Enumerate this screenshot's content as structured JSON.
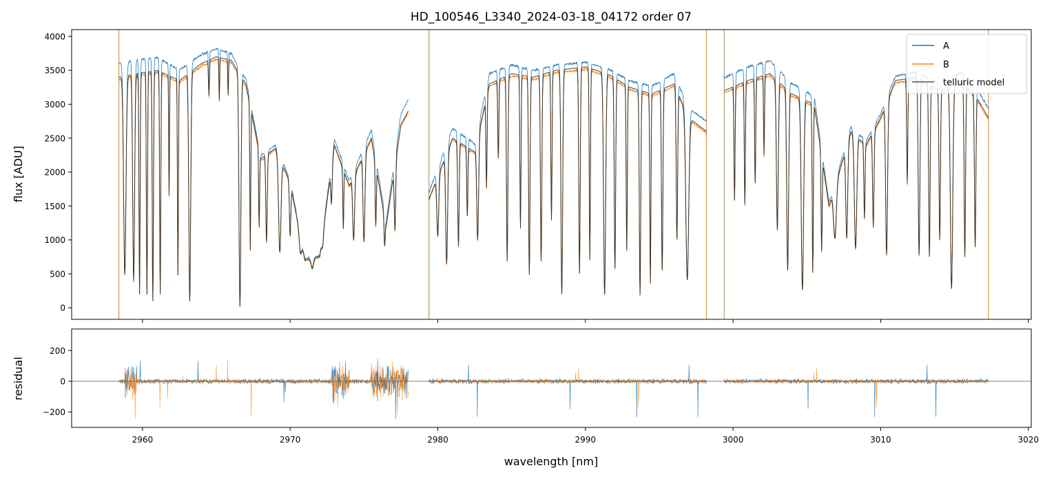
{
  "chart_data": [
    {
      "type": "line",
      "title": "HD_100546_L3340_2024-03-18_04172  order 07",
      "ylabel": "flux [ADU]",
      "xlim": [
        2955.2,
        3020.2
      ],
      "ylim": [
        -170,
        4100
      ],
      "yticks": [
        0,
        500,
        1000,
        1500,
        2000,
        2500,
        3000,
        3500,
        4000
      ],
      "xticks": [
        2960,
        2970,
        2980,
        2990,
        3000,
        3010,
        3020
      ],
      "legend_position": "top-right",
      "gap_lines_x": [
        2958.4,
        2979.4,
        2998.2,
        2999.4,
        3017.3
      ],
      "segments": [
        [
          2958.4,
          2978.0
        ],
        [
          2979.4,
          2998.2
        ],
        [
          2999.4,
          3017.3
        ]
      ],
      "continuum": [
        [
          2958.4,
          3400
        ],
        [
          2959.5,
          3450
        ],
        [
          2961.0,
          3500
        ],
        [
          2962.5,
          3350
        ],
        [
          2964.0,
          3600
        ],
        [
          2965.0,
          3700
        ],
        [
          2966.0,
          3650
        ],
        [
          2967.0,
          3300
        ],
        [
          2968.0,
          2200
        ],
        [
          2969.0,
          2350
        ],
        [
          2970.0,
          1850
        ],
        [
          2971.0,
          700
        ],
        [
          2972.0,
          750
        ],
        [
          2973.0,
          2400
        ],
        [
          2974.0,
          1800
        ],
        [
          2975.5,
          2500
        ],
        [
          2976.5,
          1200
        ],
        [
          2977.5,
          2700
        ],
        [
          2978.0,
          2900
        ],
        [
          2979.4,
          1600
        ],
        [
          2981.0,
          2500
        ],
        [
          2982.5,
          2300
        ],
        [
          2983.5,
          3300
        ],
        [
          2985.0,
          3450
        ],
        [
          2986.5,
          3400
        ],
        [
          2988.0,
          3500
        ],
        [
          2990.0,
          3550
        ],
        [
          2991.5,
          3450
        ],
        [
          2993.0,
          3250
        ],
        [
          2994.5,
          3150
        ],
        [
          2996.0,
          3300
        ],
        [
          2997.0,
          2800
        ],
        [
          2998.2,
          2600
        ],
        [
          2999.4,
          3200
        ],
        [
          3001.0,
          3350
        ],
        [
          3002.5,
          3450
        ],
        [
          3004.0,
          3150
        ],
        [
          3005.5,
          3000
        ],
        [
          3006.5,
          1500
        ],
        [
          3008.0,
          2600
        ],
        [
          3009.0,
          2400
        ],
        [
          3010.0,
          2800
        ],
        [
          3011.0,
          3350
        ],
        [
          3012.5,
          3400
        ],
        [
          3014.0,
          3200
        ],
        [
          3015.5,
          3350
        ],
        [
          3016.5,
          3100
        ],
        [
          3017.3,
          2800
        ]
      ],
      "absorption_lines": [
        [
          2958.8,
          3000,
          0.25
        ],
        [
          2959.4,
          3100,
          0.2
        ],
        [
          2959.8,
          3300,
          0.12
        ],
        [
          2960.3,
          3300,
          0.12
        ],
        [
          2960.7,
          3400,
          0.13
        ],
        [
          2961.2,
          3300,
          0.12
        ],
        [
          2961.8,
          1800,
          0.08
        ],
        [
          2962.4,
          3000,
          0.1
        ],
        [
          2963.2,
          3400,
          0.2
        ],
        [
          2964.5,
          500,
          0.1
        ],
        [
          2965.2,
          600,
          0.08
        ],
        [
          2965.8,
          500,
          0.08
        ],
        [
          2966.6,
          3500,
          0.2
        ],
        [
          2967.3,
          2500,
          0.1
        ],
        [
          2967.9,
          1700,
          0.1
        ],
        [
          2968.4,
          2000,
          0.15
        ],
        [
          2969.3,
          2200,
          0.25
        ],
        [
          2970.0,
          1500,
          0.15
        ],
        [
          2970.7,
          800,
          0.25
        ],
        [
          2971.5,
          700,
          0.25
        ],
        [
          2972.2,
          600,
          0.2
        ],
        [
          2972.8,
          900,
          0.15
        ],
        [
          2973.6,
          1500,
          0.1
        ],
        [
          2974.3,
          1700,
          0.2
        ],
        [
          2975.0,
          2000,
          0.2
        ],
        [
          2975.8,
          1500,
          0.12
        ],
        [
          2976.4,
          1100,
          0.12
        ],
        [
          2977.1,
          1600,
          0.15
        ],
        [
          2980.0,
          1600,
          0.2
        ],
        [
          2980.6,
          2500,
          0.2
        ],
        [
          2981.4,
          2200,
          0.15
        ],
        [
          2982.0,
          1500,
          0.12
        ],
        [
          2982.7,
          2100,
          0.2
        ],
        [
          2983.3,
          1500,
          0.12
        ],
        [
          2984.1,
          1200,
          0.12
        ],
        [
          2984.7,
          2800,
          0.15
        ],
        [
          2985.6,
          2300,
          0.12
        ],
        [
          2986.2,
          3000,
          0.15
        ],
        [
          2987.0,
          2800,
          0.15
        ],
        [
          2987.7,
          2200,
          0.12
        ],
        [
          2988.4,
          3300,
          0.18
        ],
        [
          2989.6,
          3000,
          0.15
        ],
        [
          2990.3,
          2800,
          0.12
        ],
        [
          2991.3,
          3300,
          0.22
        ],
        [
          2992.0,
          2900,
          0.15
        ],
        [
          2992.8,
          2600,
          0.12
        ],
        [
          2993.7,
          3300,
          0.15
        ],
        [
          2994.4,
          3100,
          0.12
        ],
        [
          2995.2,
          2900,
          0.15
        ],
        [
          2996.2,
          2400,
          0.15
        ],
        [
          2996.9,
          3000,
          0.3
        ],
        [
          3000.1,
          1800,
          0.12
        ],
        [
          3000.8,
          1900,
          0.12
        ],
        [
          3001.5,
          1600,
          0.12
        ],
        [
          3002.1,
          1200,
          0.1
        ],
        [
          3003.0,
          2300,
          0.2
        ],
        [
          3003.7,
          2900,
          0.2
        ],
        [
          3004.7,
          3200,
          0.25
        ],
        [
          3005.4,
          2900,
          0.12
        ],
        [
          3006.0,
          2200,
          0.12
        ],
        [
          3006.9,
          1500,
          0.3
        ],
        [
          3007.7,
          2000,
          0.2
        ],
        [
          3008.3,
          2300,
          0.25
        ],
        [
          3008.9,
          1600,
          0.12
        ],
        [
          3009.5,
          1900,
          0.15
        ],
        [
          3010.4,
          2600,
          0.2
        ],
        [
          3011.8,
          1600,
          0.12
        ],
        [
          3012.6,
          2700,
          0.18
        ],
        [
          3013.3,
          2700,
          0.15
        ],
        [
          3014.0,
          2400,
          0.15
        ],
        [
          3014.8,
          3200,
          0.25
        ],
        [
          3015.7,
          2700,
          0.15
        ],
        [
          3016.4,
          2500,
          0.15
        ]
      ],
      "legend": [
        {
          "label": "A",
          "color": "#1f77b4"
        },
        {
          "label": "B",
          "color": "#ff7f0e"
        },
        {
          "label": "telluric model",
          "color": "#555555"
        }
      ]
    },
    {
      "type": "line",
      "xlabel": "wavelength [nm]",
      "ylabel": "residual",
      "xlim": [
        2955.2,
        3020.2
      ],
      "ylim": [
        -300,
        340
      ],
      "yticks": [
        -200,
        0,
        200
      ],
      "xticks": [
        2960,
        2970,
        2980,
        2990,
        3000,
        3010,
        3020
      ],
      "xtick_labels": [
        "2960",
        "2970",
        "2980",
        "2990",
        "3000",
        "3010",
        "3020"
      ],
      "zero_line": 0,
      "noisy_regions": [
        [
          2958.8,
          2959.6
        ],
        [
          2972.8,
          2974.0
        ],
        [
          2975.4,
          2978.0
        ]
      ]
    }
  ]
}
